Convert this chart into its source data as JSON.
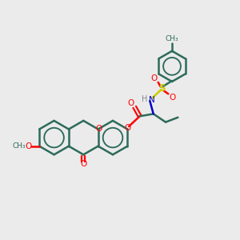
{
  "bg_color": "#ebebeb",
  "bond_color": "#2d6b5a",
  "o_color": "#ff0000",
  "n_color": "#0000cc",
  "s_color": "#cccc00",
  "h_color": "#888888",
  "line_width": 1.8,
  "figsize": [
    3.0,
    3.0
  ],
  "dpi": 100,
  "xlim": [
    0,
    10
  ],
  "ylim": [
    0,
    10
  ]
}
